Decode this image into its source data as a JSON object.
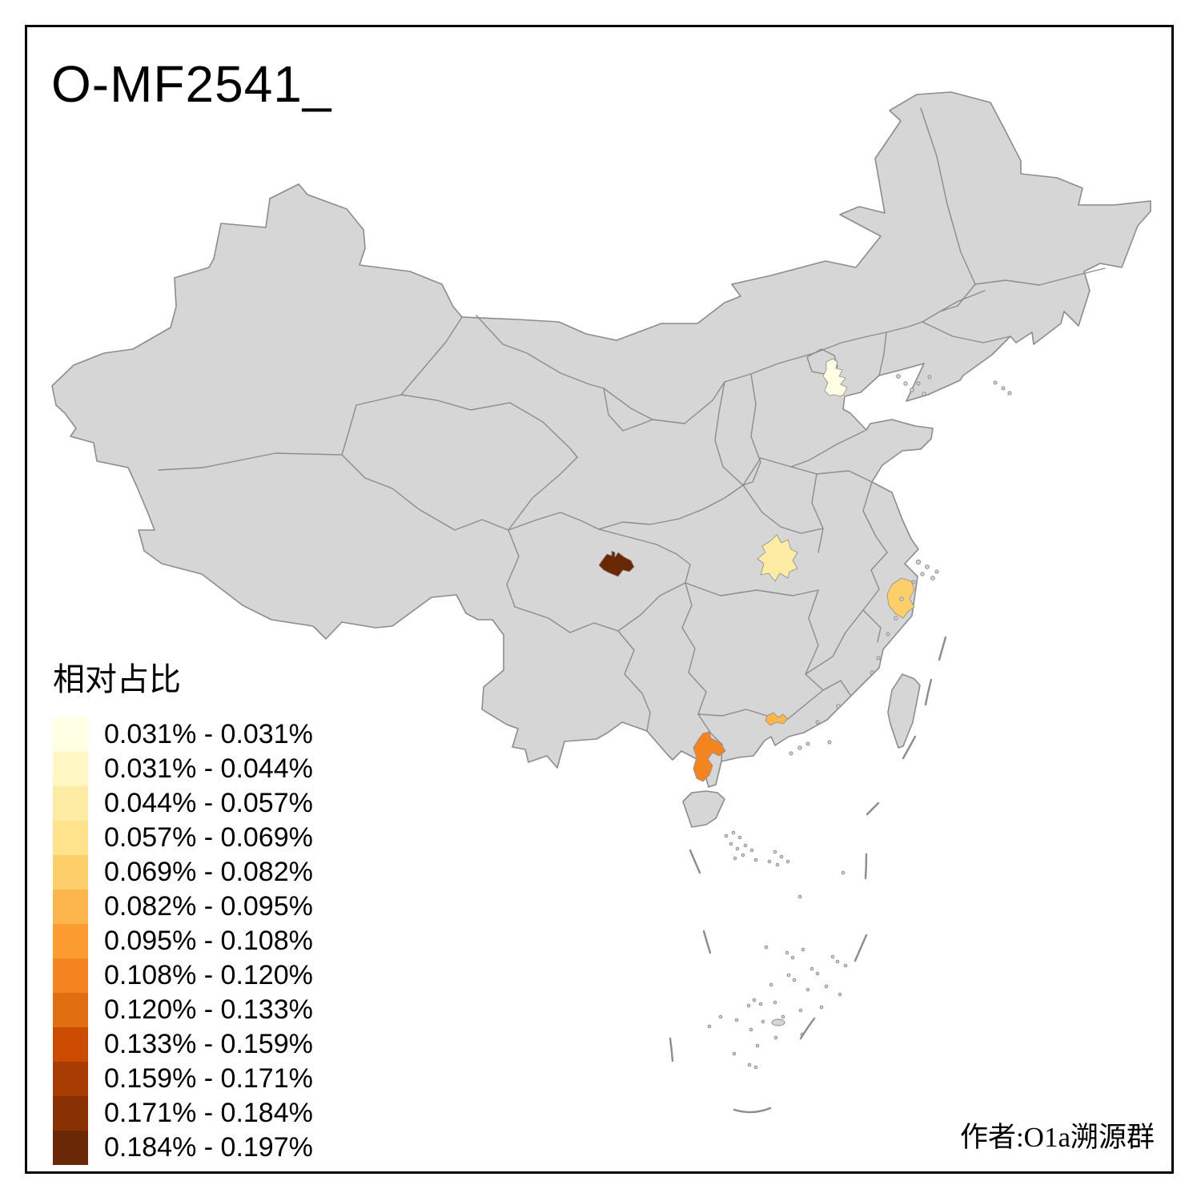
{
  "title": "O-MF2541_",
  "attribution": "作者:O1a溯源群",
  "legend": {
    "title": "相对占比",
    "bins": [
      {
        "label": "0.031% - 0.031%",
        "color": "#FFFFE3"
      },
      {
        "label": "0.031% - 0.044%",
        "color": "#FFF6C3"
      },
      {
        "label": "0.044% - 0.057%",
        "color": "#FEECA4"
      },
      {
        "label": "0.057% - 0.069%",
        "color": "#FEE28C"
      },
      {
        "label": "0.069% - 0.082%",
        "color": "#FDCF6B"
      },
      {
        "label": "0.082% - 0.095%",
        "color": "#FDB54D"
      },
      {
        "label": "0.095% - 0.108%",
        "color": "#FC9C30"
      },
      {
        "label": "0.108% - 0.120%",
        "color": "#F3841F"
      },
      {
        "label": "0.120% - 0.133%",
        "color": "#E06F12"
      },
      {
        "label": "0.133% - 0.159%",
        "color": "#CB4B02"
      },
      {
        "label": "0.159% - 0.171%",
        "color": "#A83D03"
      },
      {
        "label": "0.171% - 0.184%",
        "color": "#8A3104"
      },
      {
        "label": "0.184% - 0.197%",
        "color": "#6A2807"
      }
    ]
  },
  "map": {
    "land_color": "#D6D6D6",
    "boundary_color": "#8C8C8C",
    "sea_color": "#FFFFFF",
    "frame_color": "#000000",
    "highlighted_regions": [
      {
        "id": "r1-bohai-coast",
        "color": "#FFFFE3",
        "legend_bin": "0.031% - 0.031%"
      },
      {
        "id": "r2-central-china",
        "color": "#FEECA4",
        "legend_bin": "0.044% - 0.057%"
      },
      {
        "id": "r3-east-coast",
        "color": "#FDCF6B",
        "legend_bin": "0.069% - 0.082%"
      },
      {
        "id": "r4-pearl-delta",
        "color": "#FDB54D",
        "legend_bin": "0.082% - 0.095%"
      },
      {
        "id": "r5-south-peninsula",
        "color": "#F3841F",
        "legend_bin": "0.108% - 0.120%"
      },
      {
        "id": "r6-southwest-basin",
        "color": "#6A2807",
        "legend_bin": "0.184% - 0.197%"
      }
    ]
  }
}
